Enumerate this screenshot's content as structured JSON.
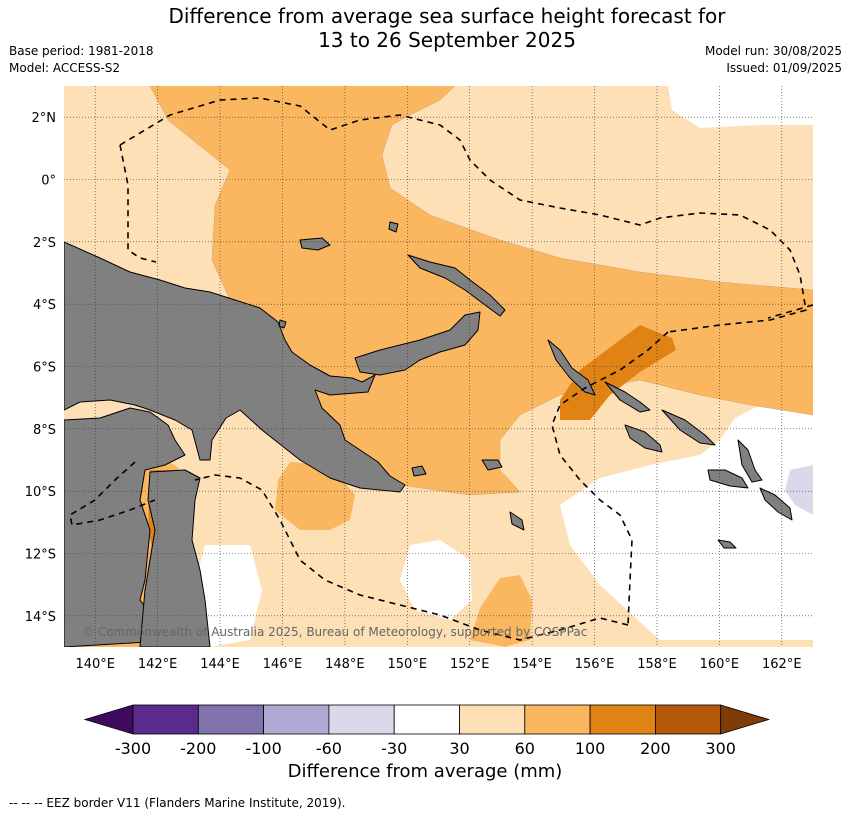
{
  "title_line1": "Difference from average sea surface height forecast for",
  "title_line2": "13 to 26 September 2025",
  "base_period": "Base period: 1981-2018",
  "model": "Model: ACCESS-S2",
  "model_run": "Model run: 30/08/2025",
  "issued": "Issued: 01/09/2025",
  "credit": "© Commonwealth of Australia 2025, Bureau of Meteorology, supported by COSPPac",
  "footnote": "--  --  -- EEZ border V11 (Flanders Marine Institute, 2019).",
  "map": {
    "lon_ticks": [
      "140°E",
      "142°E",
      "144°E",
      "146°E",
      "148°E",
      "150°E",
      "152°E",
      "154°E",
      "156°E",
      "158°E",
      "160°E",
      "162°E"
    ],
    "lat_ticks": [
      "2°N",
      "0°",
      "2°S",
      "4°S",
      "6°S",
      "8°S",
      "10°S",
      "12°S",
      "14°S"
    ],
    "lon_range": [
      139,
      163
    ],
    "lat_range": [
      -15,
      3
    ],
    "land_color": "#808080"
  },
  "colorbar": {
    "title": "Difference from average (mm)",
    "labels": [
      "-300",
      "-200",
      "-100",
      "-60",
      "-30",
      "30",
      "60",
      "100",
      "200",
      "300"
    ],
    "colors": [
      "#3f0a5e",
      "#5a2a8c",
      "#8073ad",
      "#b1a9d3",
      "#d9d9ea",
      "#ffffff",
      "#fee0b6",
      "#fbb760",
      "#e08214",
      "#b35806",
      "#7f3b08"
    ]
  }
}
